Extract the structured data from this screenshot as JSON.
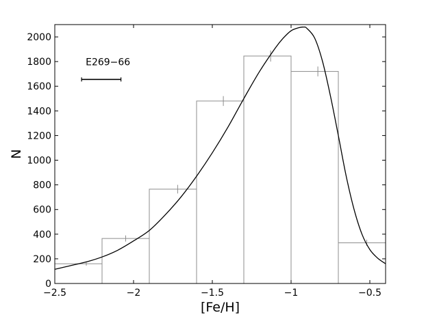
{
  "chart_data": {
    "type": "bar",
    "title": "",
    "xlabel": "[Fe/H]",
    "ylabel": "N",
    "xlim": [
      -2.5,
      -0.4
    ],
    "ylim": [
      0,
      2100
    ],
    "xticks": [
      -2.5,
      -2,
      -1.5,
      -1,
      -0.5
    ],
    "xtick_labels": [
      "−2.5",
      "−2",
      "−1.5",
      "−1",
      "−0.5"
    ],
    "yticks": [
      0,
      200,
      400,
      600,
      800,
      1000,
      1200,
      1400,
      1600,
      1800,
      2000
    ],
    "ytick_labels": [
      "0",
      "200",
      "400",
      "600",
      "800",
      "1000",
      "1200",
      "1400",
      "1600",
      "1800",
      "2000"
    ],
    "grid": false,
    "histogram": {
      "bin_edges": [
        -2.5,
        -2.2,
        -1.9,
        -1.6,
        -1.3,
        -1.0,
        -0.7,
        -0.4
      ],
      "values": [
        160,
        365,
        765,
        1480,
        1845,
        1720,
        330
      ],
      "errorbar_x": [
        -2.3,
        -2.05,
        -1.72,
        -1.43,
        -1.13,
        -0.83,
        -0.52
      ],
      "errorbar_low": [
        145,
        340,
        730,
        1440,
        1800,
        1680,
        305
      ],
      "errorbar_high": [
        175,
        390,
        800,
        1520,
        1890,
        1760,
        355
      ],
      "color": "#8c8c8c"
    },
    "fit_curve": {
      "x": [
        -2.5,
        -2.4,
        -2.3,
        -2.2,
        -2.1,
        -2.0,
        -1.9,
        -1.8,
        -1.7,
        -1.6,
        -1.5,
        -1.4,
        -1.3,
        -1.2,
        -1.1,
        -1.05,
        -1.0,
        -0.95,
        -0.92,
        -0.9,
        -0.85,
        -0.8,
        -0.75,
        -0.7,
        -0.65,
        -0.6,
        -0.55,
        -0.5,
        -0.45,
        -0.4
      ],
      "y": [
        115,
        145,
        175,
        215,
        270,
        345,
        430,
        555,
        700,
        870,
        1060,
        1270,
        1500,
        1720,
        1910,
        1990,
        2050,
        2075,
        2080,
        2070,
        1990,
        1800,
        1520,
        1200,
        870,
        600,
        400,
        275,
        205,
        160
      ],
      "color": "#000000"
    },
    "annotation": {
      "label": "E269−66",
      "bar_x": [
        -2.33,
        -2.08
      ],
      "bar_y": 1655
    }
  }
}
